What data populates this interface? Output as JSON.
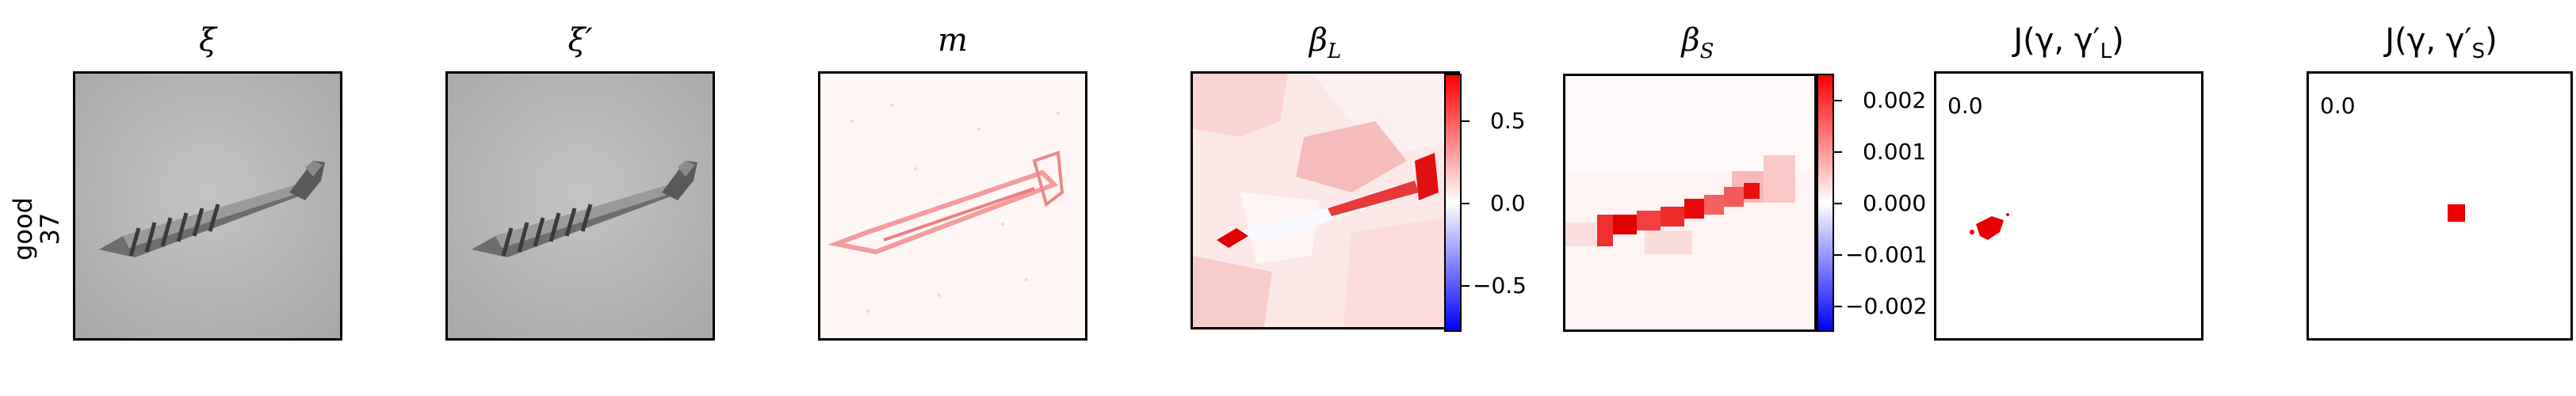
{
  "row": {
    "label_line1": "good",
    "label_line2": "37"
  },
  "panels": {
    "xi": {
      "title": "ξ"
    },
    "xi_prime": {
      "title": "ξ′"
    },
    "m": {
      "title": "m"
    },
    "beta_L": {
      "title_main": "β",
      "title_sub": "L"
    },
    "beta_S": {
      "title_main": "β",
      "title_sub": "S"
    },
    "J_L": {
      "title": "J(γ, γ′",
      "title_sub": "L",
      "title_end": ")",
      "score": "0.0"
    },
    "J_S": {
      "title": "J(γ, γ′",
      "title_sub": "S",
      "title_end": ")",
      "score": "0.0"
    }
  },
  "colorbar_L": {
    "ticks": [
      "0.5",
      "0.0",
      "−0.5"
    ]
  },
  "colorbar_S": {
    "ticks": [
      "0.002",
      "0.001",
      "0.000",
      "−0.001",
      "−0.002"
    ]
  },
  "colors": {
    "positive": "#ff0000",
    "negative": "#0000ff",
    "background_gray": "#b8b8b8"
  }
}
